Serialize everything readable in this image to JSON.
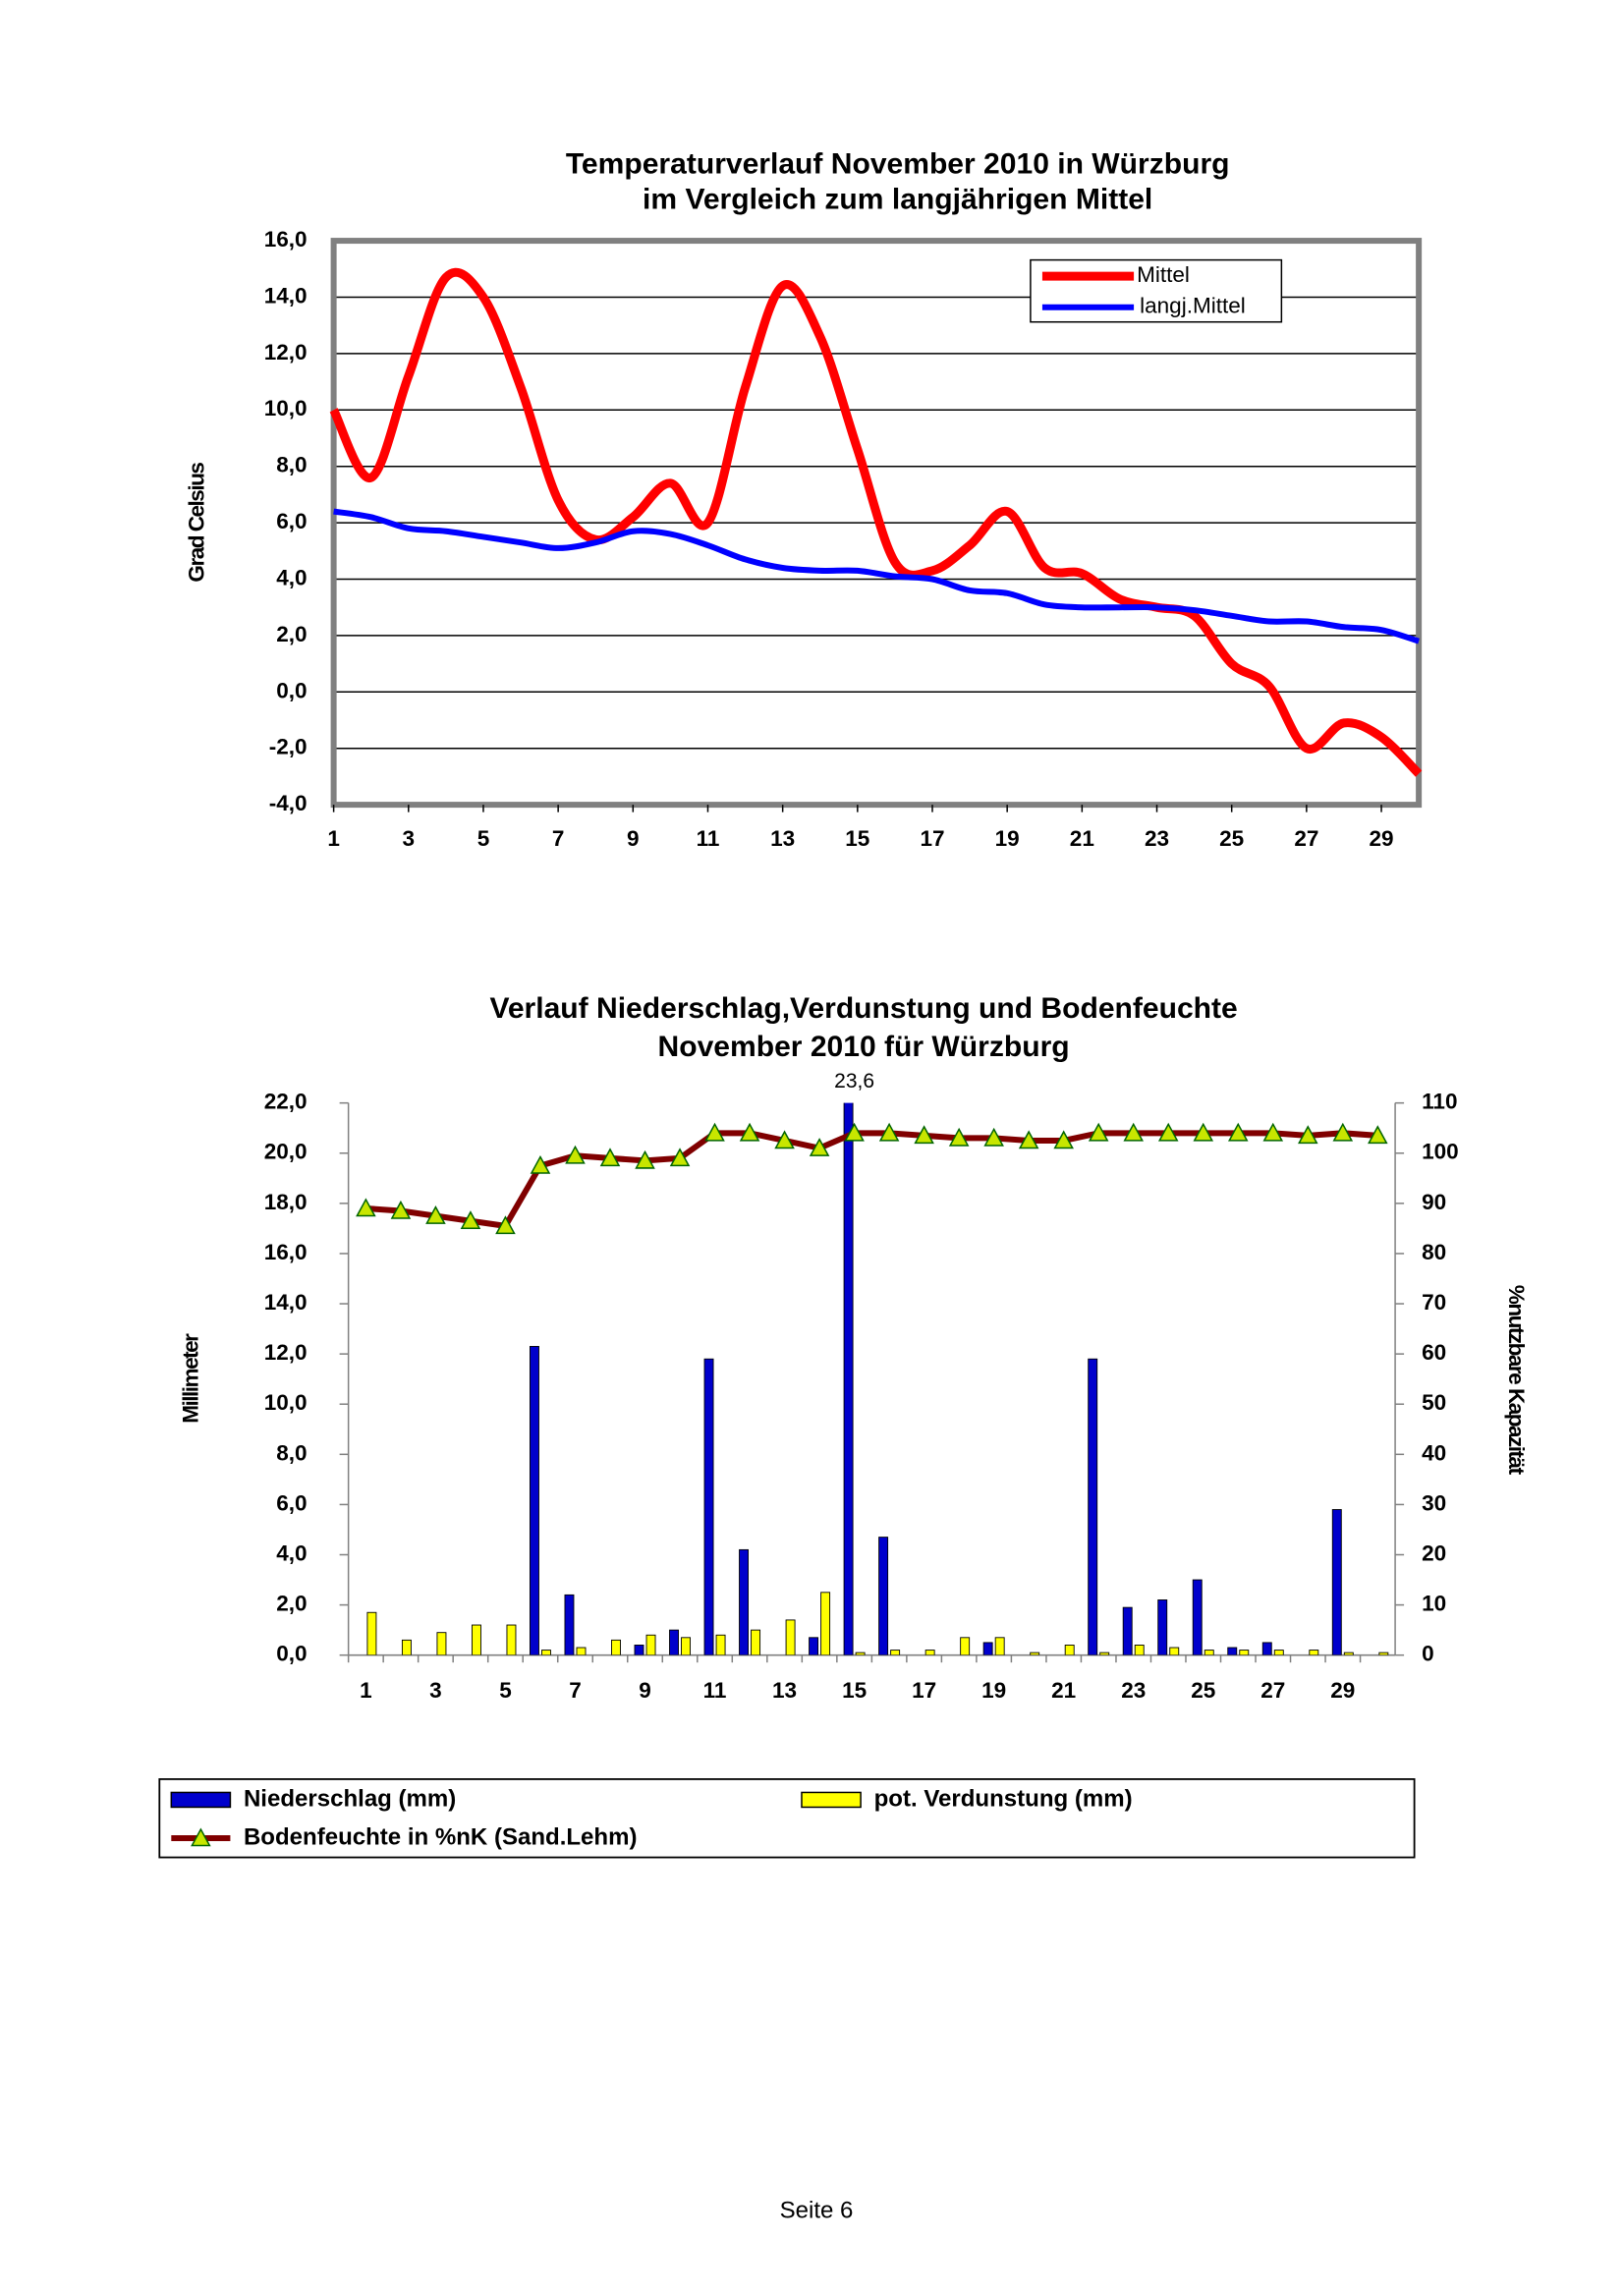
{
  "chart_data": [
    {
      "type": "line",
      "title": "Temperaturverlauf November 2010 in Würzburg",
      "subtitle": "im Vergleich zum langjährigen Mittel",
      "y_label": "Grad Celsius",
      "x": [
        1,
        2,
        3,
        4,
        5,
        6,
        7,
        8,
        9,
        10,
        11,
        12,
        13,
        14,
        15,
        16,
        17,
        18,
        19,
        20,
        21,
        22,
        23,
        24,
        25,
        26,
        27,
        28,
        29,
        30
      ],
      "xlim": [
        1,
        30
      ],
      "xticks": [
        1,
        3,
        5,
        7,
        9,
        11,
        13,
        15,
        17,
        19,
        21,
        23,
        25,
        27,
        29
      ],
      "ylim": [
        -4,
        16
      ],
      "yticks": [
        {
          "value": -4,
          "label": "-4,0"
        },
        {
          "value": -2,
          "label": "-2,0"
        },
        {
          "value": 0,
          "label": "0,0"
        },
        {
          "value": 2,
          "label": "2,0"
        },
        {
          "value": 4,
          "label": "4,0"
        },
        {
          "value": 6,
          "label": "6,0"
        },
        {
          "value": 8,
          "label": "8,0"
        },
        {
          "value": 10,
          "label": "10,0"
        },
        {
          "value": 12,
          "label": "12,0"
        },
        {
          "value": 14,
          "label": "14,0"
        },
        {
          "value": 16,
          "label": "16,0"
        }
      ],
      "grid": true,
      "legend": "upper right",
      "series": [
        {
          "name": "Mittel",
          "color": "#ff0000",
          "values": [
            10.0,
            7.6,
            11.2,
            14.7,
            14.0,
            10.8,
            6.8,
            5.4,
            6.2,
            7.4,
            6.0,
            10.8,
            14.4,
            12.6,
            8.6,
            4.6,
            4.3,
            5.2,
            6.4,
            4.4,
            4.2,
            3.3,
            3.0,
            2.7,
            1.0,
            0.2,
            -2.0,
            -1.1,
            -1.6,
            -2.9
          ]
        },
        {
          "name": "langj.Mittel",
          "color": "#0000ff",
          "values": [
            6.4,
            6.2,
            5.8,
            5.7,
            5.5,
            5.3,
            5.1,
            5.3,
            5.7,
            5.6,
            5.2,
            4.7,
            4.4,
            4.3,
            4.3,
            4.1,
            4.0,
            3.6,
            3.5,
            3.1,
            3.0,
            3.0,
            3.0,
            2.9,
            2.7,
            2.5,
            2.5,
            2.3,
            2.2,
            1.8
          ]
        }
      ]
    },
    {
      "type": "bar",
      "title": "Verlauf Niederschlag,Verdunstung und Bodenfeuchte",
      "subtitle": "November 2010 für Würzburg",
      "y_label": "Millimeter",
      "y2_label": "%nutzbare Kapazität",
      "categories": [
        1,
        null,
        3,
        null,
        5,
        null,
        7,
        null,
        9,
        null,
        11,
        null,
        13,
        null,
        15,
        null,
        17,
        null,
        19,
        null,
        21,
        null,
        23,
        null,
        25,
        null,
        27,
        null,
        29,
        null
      ],
      "ylim": [
        0,
        22
      ],
      "yticks": [
        {
          "value": 0,
          "label": "0,0"
        },
        {
          "value": 2,
          "label": "2,0"
        },
        {
          "value": 4,
          "label": "4,0"
        },
        {
          "value": 6,
          "label": "6,0"
        },
        {
          "value": 8,
          "label": "8,0"
        },
        {
          "value": 10,
          "label": "10,0"
        },
        {
          "value": 12,
          "label": "12,0"
        },
        {
          "value": 14,
          "label": "14,0"
        },
        {
          "value": 16,
          "label": "16,0"
        },
        {
          "value": 18,
          "label": "18,0"
        },
        {
          "value": 20,
          "label": "20,0"
        },
        {
          "value": 22,
          "label": "22,0"
        }
      ],
      "y2lim": [
        0,
        110
      ],
      "y2ticks": [
        0,
        10,
        20,
        30,
        40,
        50,
        60,
        70,
        80,
        90,
        100,
        110
      ],
      "legend": "bottom",
      "series": [
        {
          "name": "Niederschlag (mm)",
          "color": "#0000cc",
          "values": [
            0,
            0,
            0,
            0,
            0,
            12.3,
            2.4,
            0,
            0.4,
            1.0,
            11.8,
            4.2,
            0,
            0.7,
            23.6,
            4.7,
            0,
            0,
            0.5,
            0,
            0,
            11.8,
            1.9,
            2.2,
            3.0,
            0.3,
            0.5,
            0,
            5.8,
            0
          ],
          "value_labels": [
            null,
            null,
            null,
            null,
            null,
            null,
            null,
            null,
            null,
            null,
            null,
            null,
            null,
            null,
            "23,6",
            null,
            null,
            null,
            null,
            null,
            null,
            null,
            null,
            null,
            null,
            null,
            null,
            null,
            null,
            null
          ]
        },
        {
          "name": "pot. Verdunstung (mm)",
          "color": "#ffff00",
          "values": [
            1.7,
            0.6,
            0.9,
            1.2,
            1.2,
            0.2,
            0.3,
            0.6,
            0.8,
            0.7,
            0.8,
            1.0,
            1.4,
            2.5,
            0.1,
            0.2,
            0.2,
            0.7,
            0.7,
            0.1,
            0.4,
            0.1,
            0.4,
            0.3,
            0.2,
            0.2,
            0.2,
            0.2,
            0.1,
            0.1
          ]
        },
        {
          "name": "Bodenfeuchte in %nK (Sand.Lehm)",
          "type": "line",
          "axis": "y2",
          "color": "#800000",
          "marker_color": "#c8e600",
          "values": [
            89,
            88.5,
            87.5,
            86.5,
            85.5,
            97.5,
            99.5,
            99,
            98.5,
            99,
            104,
            104,
            102.5,
            101,
            104,
            104,
            103.5,
            103,
            103,
            102.5,
            102.5,
            104,
            104,
            104,
            104,
            104,
            104,
            103.5,
            104,
            103.5
          ]
        }
      ]
    }
  ],
  "footer": "Seite 6"
}
